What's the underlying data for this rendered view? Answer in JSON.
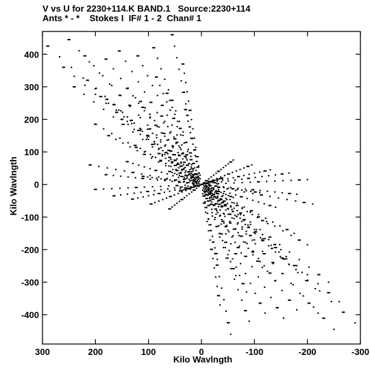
{
  "chart_data": {
    "type": "scatter",
    "title": "V vs U for 2230+114.K BAND.1   Source:2230+114",
    "subtitle": "Ants * - *    Stokes I  IF# 1 - 2  Chan# 1",
    "xlabel": "Kilo Wavlngth",
    "ylabel": "Kilo Wavlngth",
    "xlim": [
      300,
      -300
    ],
    "ylim": [
      -490,
      470
    ],
    "x_ticks": [
      300,
      200,
      100,
      0,
      -100,
      -200,
      -300
    ],
    "x_tick_labels": [
      "300",
      "200",
      "100",
      "0",
      "-100",
      "-200",
      "-300"
    ],
    "y_ticks": [
      400,
      300,
      200,
      100,
      0,
      -100,
      -200,
      -300,
      -400
    ],
    "y_tick_labels": [
      "400",
      "300",
      "200",
      "100",
      "0",
      "-100",
      "-200",
      "-300",
      "-400"
    ],
    "grid": false,
    "marker_color": "#000000",
    "tracks": [
      {
        "from": [
          290,
          425
        ],
        "to": [
          -290,
          -425
        ]
      },
      {
        "from": [
          250,
          445
        ],
        "to": [
          -250,
          -445
        ]
      },
      {
        "from": [
          220,
          395
        ],
        "to": [
          -220,
          -395
        ]
      },
      {
        "from": [
          180,
          385
        ],
        "to": [
          -180,
          -385
        ]
      },
      {
        "from": [
          155,
          410
        ],
        "to": [
          -155,
          -410
        ]
      },
      {
        "from": [
          120,
          395
        ],
        "to": [
          -120,
          -395
        ]
      },
      {
        "from": [
          90,
          420
        ],
        "to": [
          -90,
          -420
        ]
      },
      {
        "from": [
          55,
          460
        ],
        "to": [
          -55,
          -460
        ]
      },
      {
        "from": [
          260,
          360
        ],
        "to": [
          -260,
          -360
        ]
      },
      {
        "from": [
          240,
          300
        ],
        "to": [
          -240,
          -300
        ]
      },
      {
        "from": [
          215,
          320
        ],
        "to": [
          -215,
          -320
        ]
      },
      {
        "from": [
          190,
          270
        ],
        "to": [
          -190,
          -270
        ]
      },
      {
        "from": [
          165,
          245
        ],
        "to": [
          -165,
          -245
        ]
      },
      {
        "from": [
          140,
          295
        ],
        "to": [
          -140,
          -295
        ]
      },
      {
        "from": [
          115,
          255
        ],
        "to": [
          -115,
          -255
        ]
      },
      {
        "from": [
          85,
          330
        ],
        "to": [
          -85,
          -330
        ]
      },
      {
        "from": [
          65,
          280
        ],
        "to": [
          -65,
          -280
        ]
      },
      {
        "from": [
          35,
          370
        ],
        "to": [
          -35,
          -370
        ]
      },
      {
        "from": [
          200,
          185
        ],
        "to": [
          -200,
          -185
        ]
      },
      {
        "from": [
          175,
          150
        ],
        "to": [
          -175,
          -150
        ]
      },
      {
        "from": [
          150,
          200
        ],
        "to": [
          -150,
          -200
        ]
      },
      {
        "from": [
          125,
          120
        ],
        "to": [
          -125,
          -120
        ]
      },
      {
        "from": [
          100,
          170
        ],
        "to": [
          -100,
          -170
        ]
      },
      {
        "from": [
          75,
          210
        ],
        "to": [
          -75,
          -210
        ]
      },
      {
        "from": [
          50,
          140
        ],
        "to": [
          -50,
          -140
        ]
      },
      {
        "from": [
          30,
          230
        ],
        "to": [
          -30,
          -230
        ]
      },
      {
        "from": [
          210,
          60
        ],
        "to": [
          -210,
          -60
        ]
      },
      {
        "from": [
          180,
          30
        ],
        "to": [
          -180,
          -30
        ]
      },
      {
        "from": [
          140,
          70
        ],
        "to": [
          -140,
          -70
        ]
      },
      {
        "from": [
          110,
          25
        ],
        "to": [
          -110,
          -25
        ]
      },
      {
        "from": [
          80,
          95
        ],
        "to": [
          -80,
          -95
        ]
      },
      {
        "from": [
          60,
          40
        ],
        "to": [
          -60,
          -40
        ]
      },
      {
        "from": [
          200,
          -15
        ],
        "to": [
          -200,
          15
        ]
      },
      {
        "from": [
          165,
          -35
        ],
        "to": [
          -165,
          35
        ]
      },
      {
        "from": [
          130,
          -45
        ],
        "to": [
          -130,
          45
        ]
      },
      {
        "from": [
          95,
          -60
        ],
        "to": [
          -95,
          60
        ]
      },
      {
        "from": [
          60,
          -75
        ],
        "to": [
          -60,
          75
        ]
      },
      {
        "from": [
          40,
          -20
        ],
        "to": [
          -40,
          20
        ]
      }
    ]
  }
}
